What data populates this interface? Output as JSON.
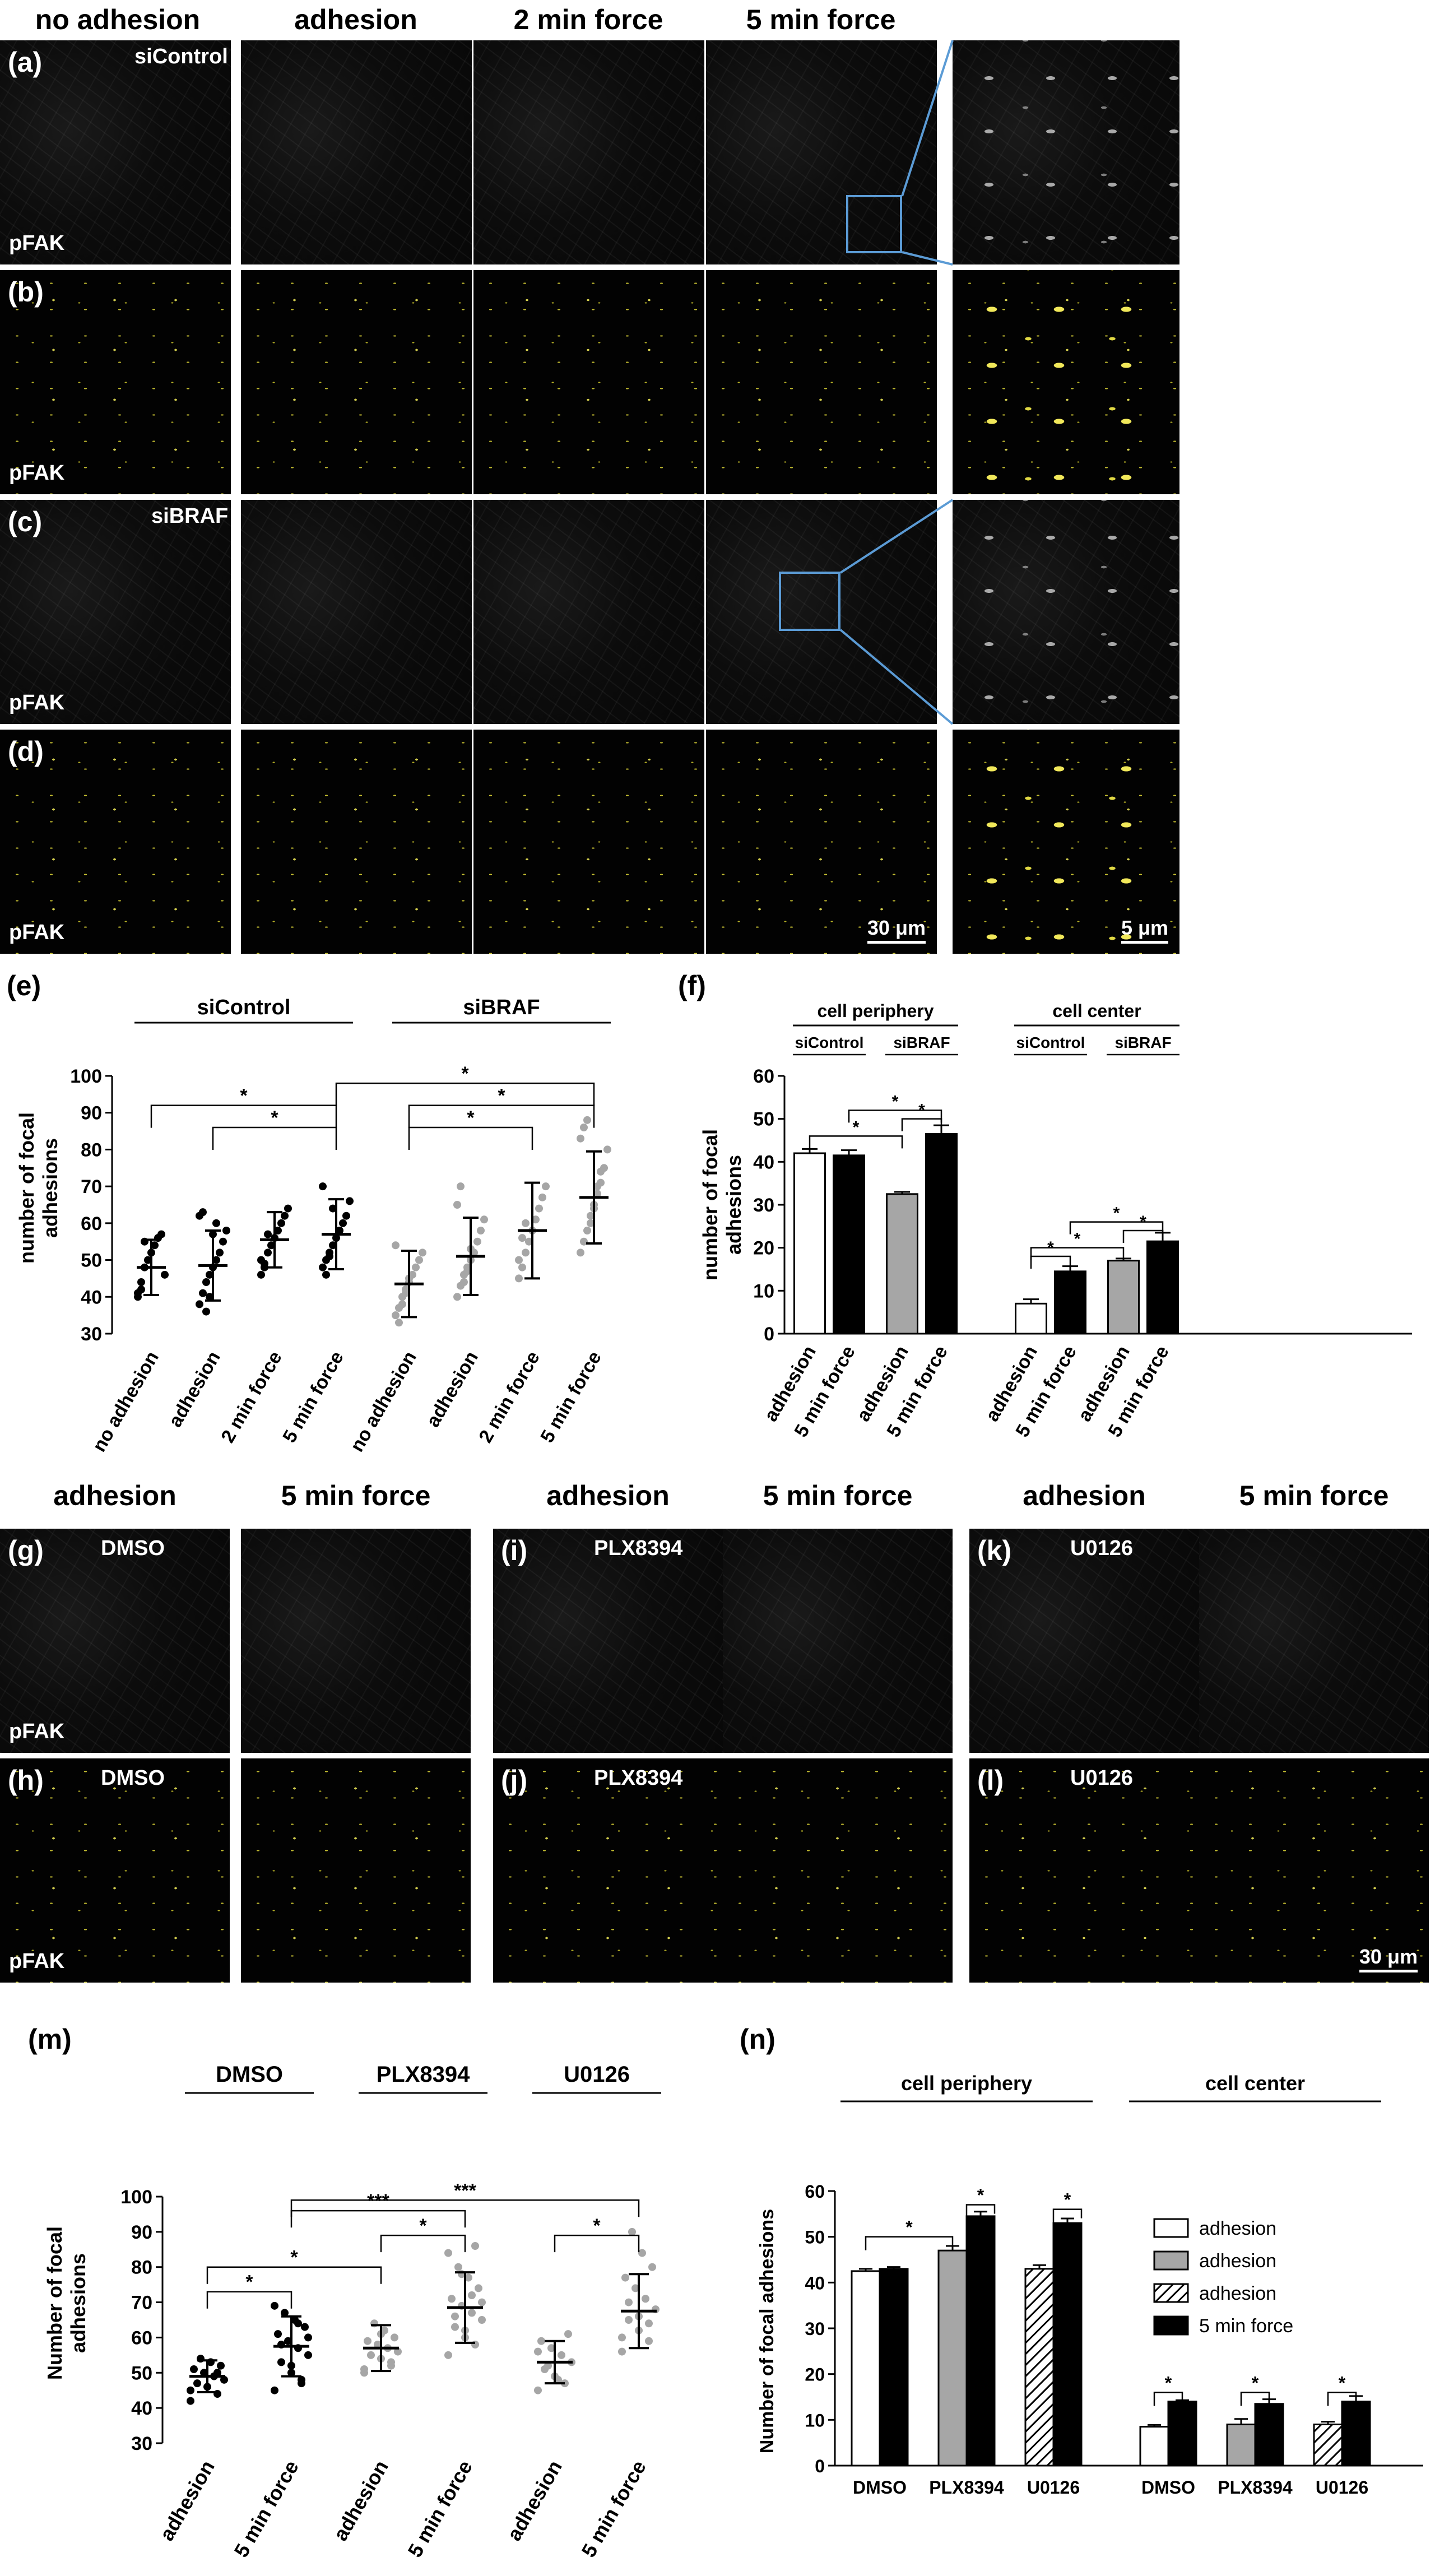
{
  "top_col_headers": [
    "no adhesion",
    "adhesion",
    "2 min force",
    "5 min force"
  ],
  "row_labels": [
    "(a)",
    "(b)",
    "(c)",
    "(d)"
  ],
  "row_treatments": {
    "a": "siControl",
    "c": "siBRAF"
  },
  "stain_label": "pFAK",
  "scale_large": "30 μm",
  "scale_zoom": "5 μm",
  "mid_col_headers": [
    "adhesion",
    "5 min force",
    "adhesion",
    "5 min force",
    "adhesion",
    "5 min force"
  ],
  "mid_row_labels": [
    "(g)",
    "(h)",
    "(i)",
    "(j)",
    "(k)",
    "(l)"
  ],
  "mid_treatments": [
    "DMSO",
    "PLX8394",
    "U0126"
  ],
  "scale_mid": "30 μm",
  "colors": {
    "yellow_mask": "#e8e03a",
    "zoom_box": "#5b9bd5",
    "gray_bar": "#a6a6a6",
    "black_bar": "#000000"
  },
  "chart_data": [
    {
      "panel": "(e)",
      "type": "scatter",
      "ylabel": "number of focal adhesions",
      "ylim": [
        30,
        100
      ],
      "yticks": [
        30,
        40,
        50,
        60,
        70,
        80,
        90,
        100
      ],
      "groups": [
        {
          "name": "siControl",
          "categories": [
            "no adhesion",
            "adhesion",
            "2 min force",
            "5 min force"
          ]
        },
        {
          "name": "siBRAF",
          "categories": [
            "no adhesion",
            "adhesion",
            "2 min force",
            "5 min force"
          ]
        }
      ],
      "series": [
        {
          "name": "siControl",
          "color": "#000000",
          "means": [
            48,
            48.5,
            55.5,
            57
          ],
          "sd": [
            7.5,
            9.5,
            7.5,
            9.5
          ],
          "points": [
            [
              41,
              44,
              48,
              50,
              52,
              54,
              56,
              57,
              46,
              40,
              42,
              55
            ],
            [
              38,
              41,
              44,
              46,
              48,
              50,
              52,
              55,
              58,
              62,
              63,
              36,
              40,
              57,
              60
            ],
            [
              46,
              49,
              52,
              54,
              56,
              58,
              60,
              62,
              64,
              50,
              48,
              57
            ],
            [
              48,
              50,
              52,
              54,
              56,
              58,
              60,
              62,
              66,
              70,
              46,
              51,
              64
            ]
          ]
        },
        {
          "name": "siBRAF",
          "color": "#a6a6a6",
          "means": [
            43.5,
            51,
            58,
            67
          ],
          "sd": [
            9,
            10.5,
            13,
            12.5
          ],
          "points": [
            [
              35,
              37,
              40,
              42,
              44,
              46,
              48,
              50,
              52,
              54,
              33,
              38,
              41,
              45
            ],
            [
              40,
              43,
              46,
              48,
              50,
              52,
              55,
              58,
              61,
              65,
              70,
              44,
              47,
              53
            ],
            [
              45,
              48,
              52,
              55,
              58,
              61,
              64,
              67,
              70,
              50,
              56,
              60
            ],
            [
              52,
              55,
              58,
              62,
              65,
              68,
              71,
              75,
              80,
              83,
              86,
              88,
              60,
              64,
              70,
              74
            ]
          ]
        }
      ],
      "significance": [
        "*",
        "*",
        "*",
        "*",
        "*"
      ]
    },
    {
      "panel": "(f)",
      "type": "bar",
      "ylabel": "number of focal adhesions",
      "ylim": [
        0,
        60
      ],
      "yticks": [
        0,
        10,
        20,
        30,
        40,
        50,
        60
      ],
      "regions": [
        "cell periphery",
        "cell center"
      ],
      "subgroups": [
        "siControl",
        "siBRAF",
        "siControl",
        "siBRAF"
      ],
      "categories": [
        "adhesion",
        "5 min force",
        "adhesion",
        "5 min force",
        "adhesion",
        "5 min force",
        "adhesion",
        "5 min force"
      ],
      "values": [
        42,
        41.5,
        32.5,
        46.5,
        7,
        14.5,
        17,
        21.5
      ],
      "errors": [
        1,
        1.2,
        0.5,
        2,
        1,
        1.2,
        0.5,
        2
      ],
      "fills": [
        "#ffffff",
        "#000000",
        "#a6a6a6",
        "#000000",
        "#ffffff",
        "#000000",
        "#a6a6a6",
        "#000000"
      ],
      "significance": [
        "*",
        "*",
        "*",
        "*",
        "*",
        "*",
        "*"
      ]
    },
    {
      "panel": "(m)",
      "type": "scatter",
      "ylabel": "Number of focal adhesions",
      "ylim": [
        30,
        100
      ],
      "yticks": [
        30,
        40,
        50,
        60,
        70,
        80,
        90,
        100
      ],
      "groups": [
        "DMSO",
        "PLX8394",
        "U0126"
      ],
      "categories": [
        "adhesion",
        "5 min force",
        "adhesion",
        "5 min force",
        "adhesion",
        "5 min force"
      ],
      "means": [
        49,
        57.5,
        57,
        68.5,
        53,
        67.5
      ],
      "sd": [
        4.5,
        8.5,
        6.5,
        10,
        6,
        10.5
      ],
      "colors": [
        "#000000",
        "#000000",
        "#a6a6a6",
        "#a6a6a6",
        "#a6a6a6",
        "#a6a6a6"
      ],
      "points": [
        [
          42,
          44,
          46,
          47,
          48,
          49,
          50,
          51,
          52,
          53,
          54,
          45,
          50
        ],
        [
          45,
          48,
          50,
          53,
          55,
          57,
          59,
          61,
          63,
          65,
          67,
          69,
          47,
          52,
          58,
          60,
          64
        ],
        [
          50,
          52,
          54,
          55,
          56,
          57,
          58,
          59,
          60,
          62,
          64,
          51,
          53,
          61
        ],
        [
          55,
          58,
          60,
          63,
          65,
          67,
          69,
          71,
          74,
          77,
          80,
          84,
          86,
          62,
          66,
          70,
          72,
          78
        ],
        [
          45,
          47,
          49,
          51,
          53,
          55,
          57,
          59,
          61,
          48,
          52,
          56
        ],
        [
          56,
          59,
          62,
          65,
          68,
          71,
          74,
          77,
          80,
          84,
          90,
          60,
          64,
          66,
          70
        ]
      ],
      "significance": [
        "*",
        "*",
        "***",
        "*",
        "***",
        "*"
      ]
    },
    {
      "panel": "(n)",
      "type": "bar",
      "ylabel": "Number of focal adhesions",
      "ylim": [
        0,
        60
      ],
      "yticks": [
        0,
        10,
        20,
        30,
        40,
        50,
        60
      ],
      "regions": [
        "cell periphery",
        "cell center"
      ],
      "categories": [
        "DMSO",
        "PLX8394",
        "U0126",
        "DMSO",
        "PLX8394",
        "U0126"
      ],
      "series": [
        {
          "name": "adhesion",
          "values": [
            42.5,
            47,
            43,
            8.5,
            9,
            9
          ],
          "errors": [
            0.5,
            1,
            0.8,
            0.4,
            1.2,
            0.6
          ]
        },
        {
          "name": "5 min force",
          "values": [
            43,
            54.5,
            53,
            14,
            13.5,
            14
          ],
          "errors": [
            0.4,
            1,
            1,
            0.3,
            1,
            1.2
          ]
        }
      ],
      "legend": [
        "adhesion",
        "adhesion",
        "adhesion",
        "5 min force"
      ],
      "legend_position": "top-right",
      "adhesion_fills": [
        "#ffffff",
        "#a6a6a6",
        "hatch"
      ],
      "significance": [
        "*",
        "*",
        "*",
        "*",
        "*",
        "*"
      ]
    }
  ],
  "panel_letters": [
    "(e)",
    "(f)",
    "(m)",
    "(n)"
  ]
}
